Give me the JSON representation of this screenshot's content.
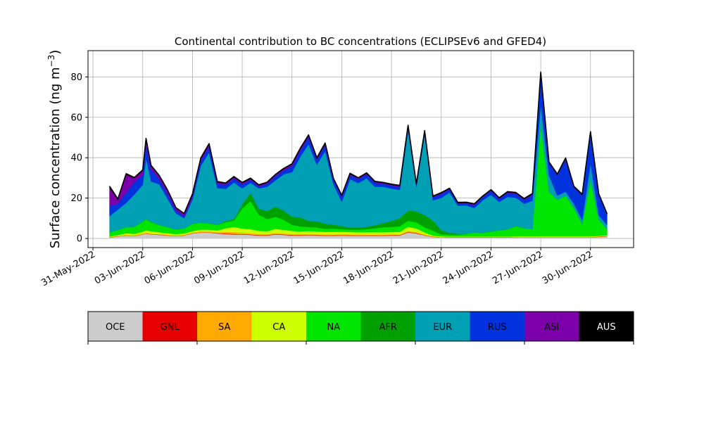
{
  "chart_data": {
    "type": "area",
    "stacked": true,
    "title": "Continental contribution to BC concentrations (ECLIPSEv6 and GFED4)",
    "ylabel_prefix": "Surface concentration (ng m",
    "ylabel_exp": "−3",
    "ylabel_suffix": ")",
    "xlabel": "",
    "x_start": "2022-05-31",
    "x_end": "2022-07-02",
    "xlim": [
      -0.3,
      32.6
    ],
    "ylim": [
      -4.5,
      93
    ],
    "yticks": [
      0,
      20,
      40,
      60,
      80
    ],
    "xtick_labels": [
      "31-May-2022",
      "03-Jun-2022",
      "06-Jun-2022",
      "09-Jun-2022",
      "12-Jun-2022",
      "15-Jun-2022",
      "18-Jun-2022",
      "21-Jun-2022",
      "24-Jun-2022",
      "27-Jun-2022",
      "30-Jun-2022"
    ],
    "xtick_days": [
      0,
      3,
      6,
      9,
      12,
      15,
      18,
      21,
      24,
      27,
      30
    ],
    "grid": true,
    "x": [
      1.0,
      1.5,
      2.0,
      2.5,
      3.0,
      3.2,
      3.5,
      4.0,
      4.5,
      5.0,
      5.5,
      6.0,
      6.5,
      7.0,
      7.5,
      8.0,
      8.5,
      9.0,
      9.5,
      10.0,
      10.5,
      11.0,
      11.5,
      12.0,
      12.5,
      13.0,
      13.5,
      14.0,
      14.5,
      15.0,
      15.5,
      16.0,
      16.5,
      17.0,
      17.5,
      18.0,
      18.5,
      19.0,
      19.5,
      20.0,
      20.5,
      21.0,
      21.5,
      22.0,
      22.5,
      23.0,
      23.5,
      24.0,
      24.5,
      25.0,
      25.5,
      26.0,
      26.5,
      27.0,
      27.5,
      28.0,
      28.5,
      29.0,
      29.5,
      30.0,
      30.5,
      31.0
    ],
    "series": [
      {
        "name": "OCE",
        "color": "#cccccc",
        "values": [
          0.5,
          1.0,
          1.5,
          1.2,
          2.0,
          2.5,
          2.0,
          1.8,
          1.5,
          1.2,
          1.5,
          2.5,
          3.0,
          3.0,
          2.5,
          2.2,
          2.0,
          2.0,
          1.8,
          1.5,
          1.5,
          2.0,
          1.8,
          1.5,
          1.5,
          1.6,
          1.5,
          1.4,
          1.4,
          1.5,
          1.4,
          1.4,
          1.4,
          1.4,
          1.4,
          1.5,
          1.5,
          3.0,
          2.5,
          1.5,
          0.8,
          0.6,
          0.5,
          0.5,
          0.5,
          0.5,
          0.5,
          0.5,
          0.5,
          0.5,
          0.6,
          0.6,
          0.6,
          0.6,
          0.6,
          0.6,
          0.6,
          0.6,
          0.6,
          0.6,
          0.8,
          1.0
        ]
      },
      {
        "name": "GNL",
        "color": "#e60000",
        "values": [
          0.1,
          0.1,
          0.1,
          0.1,
          0.1,
          0.1,
          0.1,
          0.1,
          0.1,
          0.1,
          0.1,
          0.1,
          0.1,
          0.1,
          0.2,
          0.3,
          0.3,
          0.2,
          0.2,
          0.2,
          0.2,
          0.2,
          0.2,
          0.2,
          0.2,
          0.2,
          0.2,
          0.2,
          0.2,
          0.2,
          0.2,
          0.2,
          0.2,
          0.2,
          0.2,
          0.2,
          0.2,
          0.2,
          0.2,
          0.1,
          0.1,
          0.1,
          0.1,
          0.1,
          0.1,
          0.1,
          0.1,
          0.1,
          0.1,
          0.1,
          0.1,
          0.1,
          0.1,
          0.1,
          0.1,
          0.1,
          0.1,
          0.1,
          0.1,
          0.1,
          0.1,
          0.1
        ]
      },
      {
        "name": "SA",
        "color": "#ffaa00",
        "values": [
          0.1,
          0.1,
          0.2,
          0.2,
          0.3,
          0.3,
          0.3,
          0.3,
          0.2,
          0.2,
          0.2,
          0.3,
          0.4,
          0.4,
          0.4,
          0.8,
          0.9,
          0.7,
          0.6,
          0.5,
          0.4,
          0.6,
          0.5,
          0.5,
          0.4,
          0.4,
          0.4,
          0.4,
          0.4,
          0.4,
          0.4,
          0.3,
          0.3,
          0.3,
          0.3,
          0.3,
          0.3,
          0.6,
          0.5,
          0.3,
          0.1,
          0.1,
          0.1,
          0.1,
          0.1,
          0.1,
          0.1,
          0.1,
          0.1,
          0.1,
          0.1,
          0.1,
          0.1,
          0.1,
          0.1,
          0.1,
          0.1,
          0.1,
          0.1,
          0.1,
          0.1,
          0.2
        ]
      },
      {
        "name": "CA",
        "color": "#ccff00",
        "values": [
          0.3,
          0.5,
          0.8,
          0.8,
          1.0,
          1.2,
          1.2,
          0.9,
          0.8,
          0.7,
          0.7,
          0.8,
          0.9,
          0.9,
          0.9,
          1.8,
          2.5,
          2.0,
          2.0,
          1.6,
          1.5,
          2.0,
          1.8,
          1.6,
          1.4,
          1.5,
          1.4,
          1.3,
          1.3,
          1.3,
          1.2,
          1.2,
          1.2,
          1.2,
          1.2,
          1.2,
          1.3,
          2.0,
          1.8,
          1.2,
          0.4,
          0.3,
          0.3,
          0.3,
          0.3,
          0.3,
          0.3,
          0.3,
          0.3,
          0.3,
          0.3,
          0.3,
          0.3,
          0.3,
          0.3,
          0.3,
          0.3,
          0.3,
          0.3,
          0.3,
          0.3,
          0.3
        ]
      },
      {
        "name": "NA",
        "color": "#00e600",
        "values": [
          2.0,
          2.5,
          3.0,
          3.5,
          5.0,
          5.5,
          4.5,
          3.5,
          3.0,
          2.2,
          2.5,
          3.5,
          3.5,
          3.0,
          2.8,
          3.0,
          3.2,
          10.0,
          14.0,
          8.0,
          6.0,
          6.0,
          5.0,
          3.0,
          2.5,
          2.0,
          2.0,
          1.5,
          1.6,
          1.2,
          1.2,
          1.3,
          1.5,
          2.0,
          2.5,
          2.5,
          2.8,
          3.0,
          3.0,
          2.5,
          2.5,
          1.0,
          0.8,
          0.8,
          1.2,
          2.0,
          1.8,
          2.5,
          3.0,
          3.5,
          5.0,
          4.0,
          3.5,
          55.0,
          22.0,
          18.0,
          20.0,
          14.0,
          6.0,
          28.0,
          8.0,
          3.0
        ]
      },
      {
        "name": "AFR",
        "color": "#00a000",
        "values": [
          0.1,
          0.1,
          0.1,
          0.1,
          0.2,
          0.2,
          0.2,
          0.2,
          0.1,
          0.1,
          0.1,
          0.1,
          0.1,
          0.1,
          0.2,
          0.5,
          0.8,
          2.0,
          4.0,
          3.0,
          4.0,
          5.0,
          4.5,
          4.0,
          4.5,
          3.0,
          3.0,
          2.5,
          2.0,
          1.5,
          1.0,
          1.0,
          1.2,
          1.5,
          2.0,
          3.0,
          4.0,
          5.0,
          5.5,
          6.0,
          5.0,
          2.0,
          1.0,
          0.5,
          0.2,
          0.1,
          0.1,
          0.1,
          0.1,
          0.1,
          0.1,
          0.1,
          0.1,
          0.1,
          0.1,
          0.1,
          0.1,
          0.1,
          0.1,
          0.1,
          0.1,
          0.1
        ]
      },
      {
        "name": "EUR",
        "color": "#00a0b4",
        "values": [
          8.0,
          10.0,
          12.0,
          16.0,
          18.0,
          30.0,
          20.0,
          20.0,
          14.0,
          8.0,
          5.0,
          12.0,
          28.0,
          35.0,
          18.0,
          16.0,
          18.0,
          8.0,
          5.0,
          10.0,
          12.0,
          13.0,
          18.0,
          22.0,
          30.0,
          38.0,
          28.0,
          36.0,
          20.0,
          12.0,
          24.0,
          22.0,
          24.0,
          19.0,
          18.0,
          16.0,
          14.0,
          40.0,
          12.0,
          40.0,
          10.0,
          16.0,
          20.0,
          14.0,
          14.0,
          12.0,
          16.0,
          18.0,
          14.0,
          16.0,
          14.0,
          12.0,
          14.0,
          10.0,
          8.0,
          2.0,
          2.0,
          2.0,
          2.0,
          8.0,
          2.0,
          2.0
        ]
      },
      {
        "name": "RUS",
        "color": "#0033dd",
        "values": [
          5.0,
          3.0,
          5.0,
          6.0,
          5.0,
          7.0,
          6.0,
          2.5,
          2.5,
          1.5,
          1.0,
          1.5,
          2.5,
          3.0,
          2.0,
          2.0,
          2.0,
          2.0,
          1.5,
          1.0,
          1.5,
          2.0,
          2.0,
          3.0,
          3.0,
          3.5,
          2.5,
          3.0,
          2.0,
          2.5,
          2.0,
          2.0,
          2.0,
          2.0,
          1.5,
          1.5,
          1.5,
          1.5,
          1.0,
          1.0,
          1.5,
          2.0,
          1.5,
          1.0,
          1.0,
          1.5,
          1.5,
          2.0,
          1.5,
          2.0,
          2.0,
          2.0,
          3.0,
          15.0,
          6.0,
          10.0,
          16.0,
          8.0,
          12.0,
          15.0,
          10.0,
          5.0
        ]
      },
      {
        "name": "ASI",
        "color": "#7b00aa",
        "values": [
          9.0,
          2.0,
          9.0,
          2.0,
          2.0,
          2.0,
          1.5,
          1.5,
          1.5,
          1.0,
          1.0,
          1.0,
          1.0,
          1.0,
          0.8,
          0.6,
          0.6,
          0.5,
          0.5,
          0.5,
          0.5,
          0.6,
          0.6,
          0.8,
          0.8,
          0.6,
          0.6,
          0.5,
          0.5,
          0.5,
          0.5,
          0.4,
          0.4,
          0.4,
          0.4,
          0.4,
          0.4,
          0.4,
          0.4,
          0.4,
          0.3,
          0.3,
          0.3,
          0.3,
          0.3,
          0.3,
          0.3,
          0.3,
          0.3,
          0.3,
          0.3,
          0.3,
          0.3,
          0.3,
          0.3,
          0.3,
          0.3,
          0.3,
          0.3,
          0.3,
          0.3,
          0.3
        ]
      },
      {
        "name": "AUS",
        "color": "#000000",
        "values": [
          0.8,
          0.3,
          0.4,
          0.3,
          0.4,
          0.8,
          0.5,
          0.4,
          0.3,
          0.3,
          0.3,
          0.3,
          0.4,
          0.5,
          0.4,
          0.3,
          0.4,
          0.4,
          0.3,
          0.3,
          0.3,
          0.3,
          0.3,
          0.4,
          0.4,
          0.5,
          0.4,
          0.5,
          0.4,
          0.3,
          0.4,
          0.3,
          0.3,
          0.3,
          0.3,
          0.3,
          0.3,
          0.4,
          0.3,
          0.4,
          0.3,
          0.3,
          0.3,
          0.3,
          0.3,
          0.3,
          0.3,
          0.3,
          0.3,
          0.3,
          0.3,
          0.3,
          0.3,
          0.9,
          0.4,
          0.4,
          0.4,
          0.4,
          0.4,
          0.4,
          0.4,
          0.3
        ]
      }
    ],
    "legend": {
      "placement": "bottom",
      "entries": [
        {
          "name": "OCE",
          "color": "#cccccc",
          "text_color": "#000000"
        },
        {
          "name": "GNL",
          "color": "#e60000",
          "text_color": "#000000"
        },
        {
          "name": "SA",
          "color": "#ffaa00",
          "text_color": "#000000"
        },
        {
          "name": "CA",
          "color": "#ccff00",
          "text_color": "#000000"
        },
        {
          "name": "NA",
          "color": "#00e600",
          "text_color": "#000000"
        },
        {
          "name": "AFR",
          "color": "#00a000",
          "text_color": "#000000"
        },
        {
          "name": "EUR",
          "color": "#00a0b4",
          "text_color": "#000000"
        },
        {
          "name": "RUS",
          "color": "#0033dd",
          "text_color": "#000000"
        },
        {
          "name": "ASI",
          "color": "#7b00aa",
          "text_color": "#000000"
        },
        {
          "name": "AUS",
          "color": "#000000",
          "text_color": "#ffffff"
        }
      ]
    }
  }
}
